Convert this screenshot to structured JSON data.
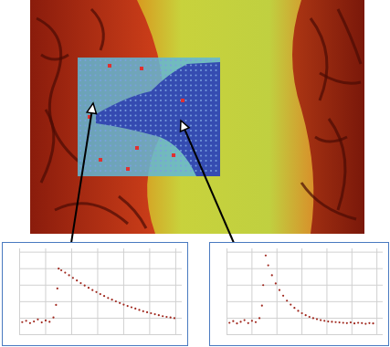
{
  "chart_data": [
    {
      "type": "scatter",
      "color": "#a0281e",
      "marker": "dot",
      "grid": true,
      "tick_labels": false,
      "xlim": [
        0,
        12.5
      ],
      "ylim": [
        0,
        2600
      ],
      "xticks": [
        0,
        2,
        4,
        6,
        8,
        10,
        12
      ],
      "yticks": [
        0,
        500,
        1000,
        1500,
        2000,
        2500
      ],
      "x": [
        0.2,
        0.5,
        0.8,
        1.1,
        1.4,
        1.7,
        2.0,
        2.3,
        2.6,
        2.8,
        2.9,
        3.0,
        3.2,
        3.5,
        3.8,
        4.1,
        4.4,
        4.7,
        5.0,
        5.3,
        5.6,
        5.9,
        6.2,
        6.5,
        6.8,
        7.1,
        7.4,
        7.7,
        8.0,
        8.3,
        8.6,
        8.9,
        9.2,
        9.5,
        9.8,
        10.1,
        10.4,
        10.7,
        11.0,
        11.3,
        11.6,
        11.9
      ],
      "values": [
        380,
        420,
        350,
        400,
        460,
        370,
        430,
        390,
        520,
        900,
        1400,
        2000,
        1950,
        1880,
        1800,
        1720,
        1640,
        1560,
        1490,
        1420,
        1350,
        1290,
        1230,
        1170,
        1110,
        1060,
        1010,
        960,
        910,
        870,
        830,
        790,
        750,
        710,
        680,
        650,
        620,
        590,
        560,
        540,
        520,
        500
      ]
    },
    {
      "type": "scatter",
      "color": "#a0281e",
      "marker": "dot",
      "grid": true,
      "tick_labels": false,
      "xlim": [
        0,
        12.5
      ],
      "ylim": [
        0,
        2600
      ],
      "xticks": [
        0,
        2,
        4,
        6,
        8,
        10,
        12
      ],
      "yticks": [
        0,
        500,
        1000,
        1500,
        2000,
        2500
      ],
      "x": [
        0.2,
        0.5,
        0.8,
        1.1,
        1.4,
        1.7,
        2.0,
        2.3,
        2.6,
        2.8,
        2.9,
        3.1,
        3.3,
        3.6,
        3.9,
        4.2,
        4.5,
        4.8,
        5.1,
        5.4,
        5.7,
        6.0,
        6.3,
        6.6,
        6.9,
        7.2,
        7.5,
        7.8,
        8.1,
        8.4,
        8.7,
        9.0,
        9.3,
        9.6,
        9.9,
        10.2,
        10.5,
        10.8,
        11.1,
        11.4,
        11.7
      ],
      "values": [
        360,
        410,
        340,
        390,
        440,
        350,
        420,
        380,
        500,
        880,
        1500,
        2400,
        2100,
        1800,
        1550,
        1350,
        1180,
        1030,
        910,
        810,
        720,
        650,
        590,
        540,
        500,
        470,
        440,
        420,
        400,
        390,
        380,
        370,
        360,
        350,
        370,
        340,
        360,
        350,
        330,
        350,
        340
      ]
    }
  ]
}
